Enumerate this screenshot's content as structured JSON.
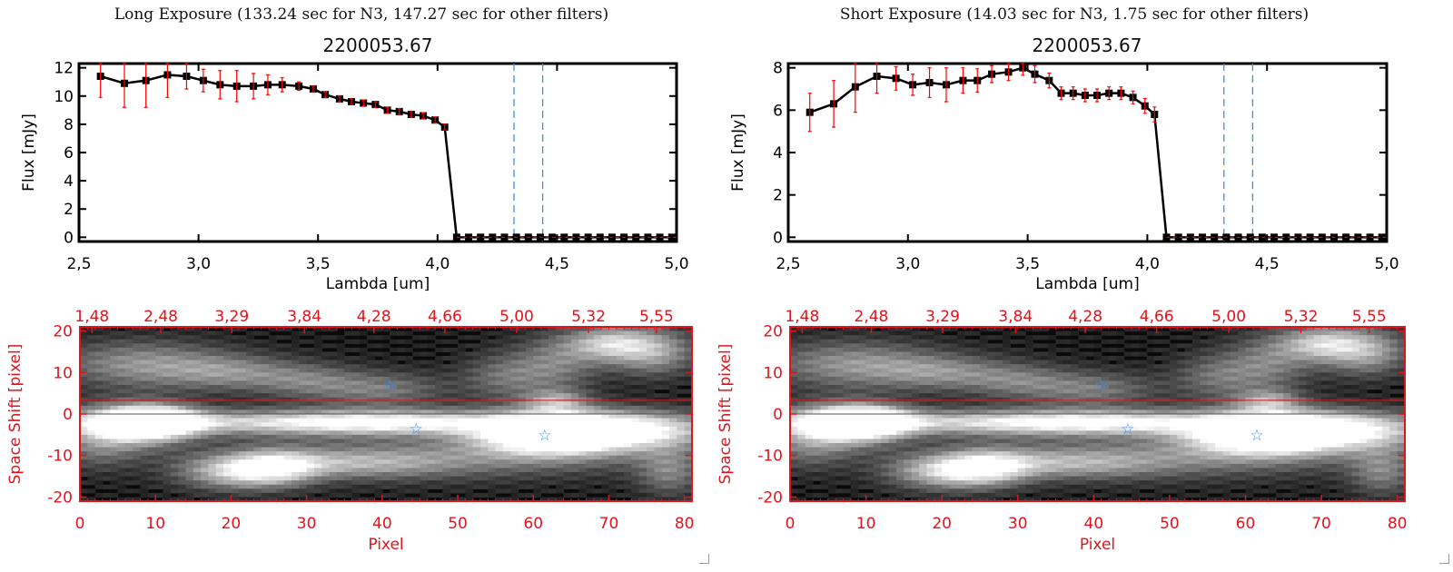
{
  "panels": [
    {
      "subtitle": "Long Exposure (133.24 sec for N3, 147.27 sec for other filters)",
      "title": "2200053.67"
    },
    {
      "subtitle": "Short Exposure (14.03 sec for N3, 1.75 sec for other filters)",
      "title": "2200053.67"
    }
  ],
  "chart_data": [
    {
      "type": "line",
      "title": "2200053.67",
      "xlabel": "Lambda [um]",
      "ylabel": "Flux [mJy]",
      "xlim": [
        2.5,
        5.0
      ],
      "ylim": [
        -0.3,
        12.3
      ],
      "xticks": [
        "2.5",
        "3.0",
        "3.5",
        "4.0",
        "4.5",
        "5.0"
      ],
      "yticks": [
        "0",
        "2",
        "4",
        "6",
        "8",
        "10",
        "12"
      ],
      "x": [
        2.59,
        2.69,
        2.78,
        2.87,
        2.95,
        3.02,
        3.09,
        3.16,
        3.23,
        3.29,
        3.35,
        3.42,
        3.48,
        3.53,
        3.59,
        3.64,
        3.69,
        3.74,
        3.79,
        3.84,
        3.89,
        3.94,
        3.99,
        4.03
      ],
      "y": [
        11.4,
        10.9,
        11.1,
        11.5,
        11.4,
        11.1,
        10.8,
        10.7,
        10.7,
        10.8,
        10.8,
        10.7,
        10.5,
        10.1,
        9.8,
        9.6,
        9.5,
        9.4,
        9.0,
        8.9,
        8.7,
        8.6,
        8.3,
        7.8
      ],
      "yerr": [
        1.5,
        1.7,
        1.9,
        1.6,
        0.9,
        0.8,
        1.0,
        1.1,
        0.9,
        0.7,
        0.5,
        0.3,
        0.2,
        0.2,
        0.2,
        0.2,
        0.2,
        0.2,
        0.2,
        0.2,
        0.2,
        0.2,
        0.2,
        0.2
      ],
      "zero_points_from": 4.08,
      "zero_points_to": 4.98,
      "zero_step": 0.05,
      "vlines": [
        4.32,
        4.44
      ],
      "colors": {
        "line": "#000000",
        "errorbar": "#ff0000",
        "vline": "#3f8fdf",
        "zeroline": "#ff0000"
      }
    },
    {
      "type": "line",
      "title": "2200053.67",
      "xlabel": "Lambda [um]",
      "ylabel": "Flux [mJy]",
      "xlim": [
        2.5,
        5.0
      ],
      "ylim": [
        -0.2,
        8.2
      ],
      "xticks": [
        "2.5",
        "3.0",
        "3.5",
        "4.0",
        "4.5",
        "5.0"
      ],
      "yticks": [
        "0",
        "2",
        "4",
        "6",
        "8"
      ],
      "x": [
        2.59,
        2.69,
        2.78,
        2.87,
        2.95,
        3.02,
        3.09,
        3.16,
        3.23,
        3.29,
        3.35,
        3.42,
        3.48,
        3.53,
        3.59,
        3.64,
        3.69,
        3.74,
        3.79,
        3.84,
        3.89,
        3.94,
        3.99,
        4.03
      ],
      "y": [
        5.9,
        6.3,
        7.1,
        7.6,
        7.5,
        7.2,
        7.3,
        7.2,
        7.4,
        7.4,
        7.7,
        7.8,
        8.0,
        7.7,
        7.4,
        6.8,
        6.8,
        6.7,
        6.7,
        6.8,
        6.8,
        6.6,
        6.2,
        5.8
      ],
      "yerr": [
        0.9,
        1.1,
        1.2,
        0.8,
        0.55,
        0.5,
        0.7,
        0.8,
        0.6,
        0.55,
        0.4,
        0.4,
        0.35,
        0.4,
        0.35,
        0.3,
        0.3,
        0.3,
        0.3,
        0.3,
        0.3,
        0.3,
        0.35,
        0.35
      ],
      "zero_points_from": 4.08,
      "zero_points_to": 4.98,
      "zero_step": 0.05,
      "vlines": [
        4.32,
        4.44
      ],
      "colors": {
        "line": "#000000",
        "errorbar": "#ff0000",
        "vline": "#3f8fdf",
        "zeroline": "#ff0000"
      }
    },
    {
      "type": "heatmap",
      "xlabel": "Pixel",
      "ylabel": "Space Shift [pixel]",
      "xlim": [
        0,
        81
      ],
      "ylim": [
        -21,
        21
      ],
      "xticks": [
        "0",
        "10",
        "20",
        "30",
        "40",
        "50",
        "60",
        "70",
        "80"
      ],
      "yticks": [
        "-20",
        "-10",
        "0",
        "10",
        "20"
      ],
      "top_ticks": {
        "labels": [
          "1.48",
          "2.48",
          "3.29",
          "3.84",
          "4.28",
          "4.66",
          "5.00",
          "5.32",
          "5.55"
        ],
        "pixel": [
          1.6,
          10.7,
          20.1,
          29.7,
          38.9,
          48.3,
          57.8,
          67.3,
          76.3
        ]
      },
      "hline": 3.3,
      "stars": [
        [
          41,
          7
        ],
        [
          44.5,
          -3.5
        ],
        [
          61.5,
          -5
        ]
      ],
      "colors": {
        "axis": "#e0141e",
        "star": "#2f8fff"
      }
    },
    {
      "type": "heatmap",
      "xlabel": "Pixel",
      "ylabel": "Space Shift [pixel]",
      "xlim": [
        0,
        81
      ],
      "ylim": [
        -21,
        21
      ],
      "xticks": [
        "0",
        "10",
        "20",
        "30",
        "40",
        "50",
        "60",
        "70",
        "80"
      ],
      "yticks": [
        "-20",
        "-10",
        "0",
        "10",
        "20"
      ],
      "top_ticks": {
        "labels": [
          "1.48",
          "2.48",
          "3.29",
          "3.84",
          "4.28",
          "4.66",
          "5.00",
          "5.32",
          "5.55"
        ],
        "pixel": [
          1.6,
          10.7,
          20.1,
          29.7,
          38.9,
          48.3,
          57.8,
          67.3,
          76.3
        ]
      },
      "hline": 3.3,
      "stars": [
        [
          41,
          7
        ],
        [
          44.5,
          -3.5
        ],
        [
          61.5,
          -5
        ]
      ],
      "colors": {
        "axis": "#e0141e",
        "star": "#2f8fff"
      }
    }
  ]
}
